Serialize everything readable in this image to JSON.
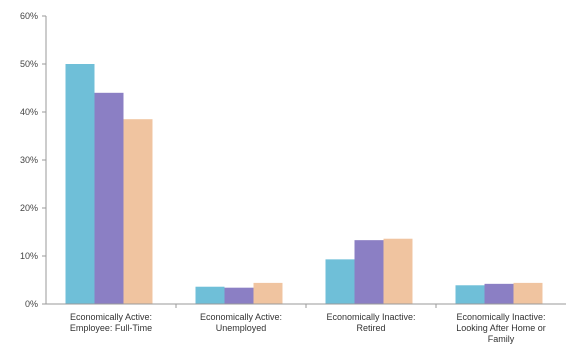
{
  "chart_data": {
    "type": "bar",
    "title": "",
    "xlabel": "",
    "ylabel": "",
    "ylim": [
      0,
      60
    ],
    "y_ticks": [
      "0%",
      "10%",
      "20%",
      "30%",
      "40%",
      "50%",
      "60%"
    ],
    "y_tick_values": [
      0,
      10,
      20,
      30,
      40,
      50,
      60
    ],
    "grid": false,
    "legend": "none",
    "categories": [
      [
        "Economically Active:",
        "Employee: Full-Time"
      ],
      [
        "Economically Active:",
        "Unemployed"
      ],
      [
        "Economically Inactive:",
        "Retired"
      ],
      [
        "Economically Inactive:",
        "Looking After Home or",
        "Family"
      ]
    ],
    "series": [
      {
        "values": [
          50,
          3.6,
          9.3,
          3.9
        ],
        "color": "#6fbfd8"
      },
      {
        "values": [
          44,
          3.4,
          13.3,
          4.2
        ],
        "color": "#8b7fc4"
      },
      {
        "values": [
          38.5,
          4.4,
          13.6,
          4.4
        ],
        "color": "#f0c4a0"
      }
    ]
  }
}
